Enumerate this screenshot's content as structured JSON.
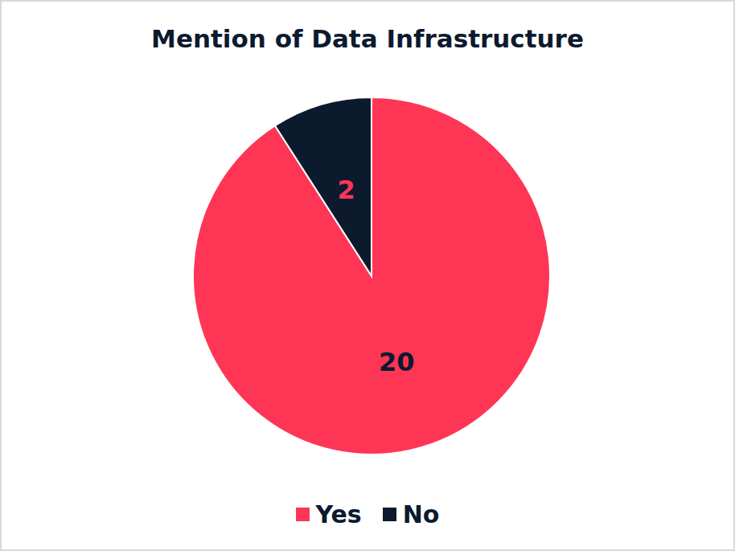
{
  "chart_data": {
    "type": "pie",
    "title": "Mention of Data Infrastructure",
    "categories": [
      "Yes",
      "No"
    ],
    "values": [
      20,
      2
    ],
    "colors": [
      "#ff3556",
      "#0c1a2e"
    ],
    "data_labels": true,
    "legend": "bottom"
  }
}
